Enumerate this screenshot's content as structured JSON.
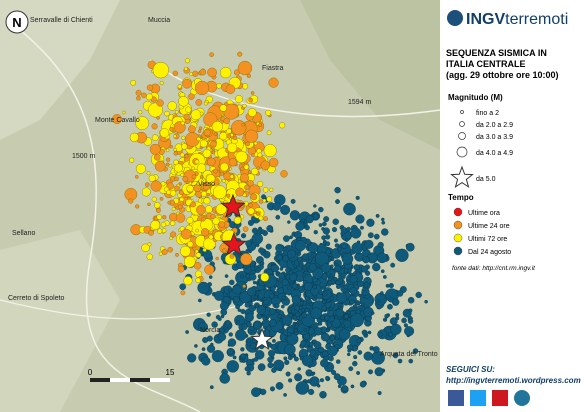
{
  "header": {
    "logo_bold": "INGV",
    "logo_rest": "terremoti",
    "title": [
      "SEQUENZA SISMICA IN",
      "ITALIA CENTRALE",
      "(agg. 29 ottobre ore 10:00)"
    ]
  },
  "legend": {
    "magnitude_title": "Magnitudo (M)",
    "magnitudes": [
      "fino a 2",
      "da 2.0 a 2.9",
      "da 3.0 a 3.9",
      "da 4.0 a 4.9",
      "da 5.0"
    ],
    "time_title": "Tempo",
    "times": [
      {
        "label": "Ultime ora",
        "color": "#e8141c"
      },
      {
        "label": "Ultime 24 ore",
        "color": "#f39220"
      },
      {
        "label": "Ultimi 72 ore",
        "color": "#fff200"
      },
      {
        "label": "Dal 24 agosto",
        "color": "#0f5a7a"
      }
    ]
  },
  "source": "fonte dati: http://cnt.rm.ingv.it",
  "follow": {
    "label": "SEGUICI SU:",
    "url": "http://ingvterremoti.wordpress.com"
  },
  "map": {
    "places": [
      "Serravalle di Chienti",
      "Muccia",
      "Fiastra",
      "Monte Cavallo",
      "Visso",
      "Sellano",
      "Cerreto di Spoleto",
      "Norcia",
      "Arquata del Tronto",
      "1594 m",
      "1500 m"
    ],
    "scale": [
      "0",
      "15"
    ]
  }
}
